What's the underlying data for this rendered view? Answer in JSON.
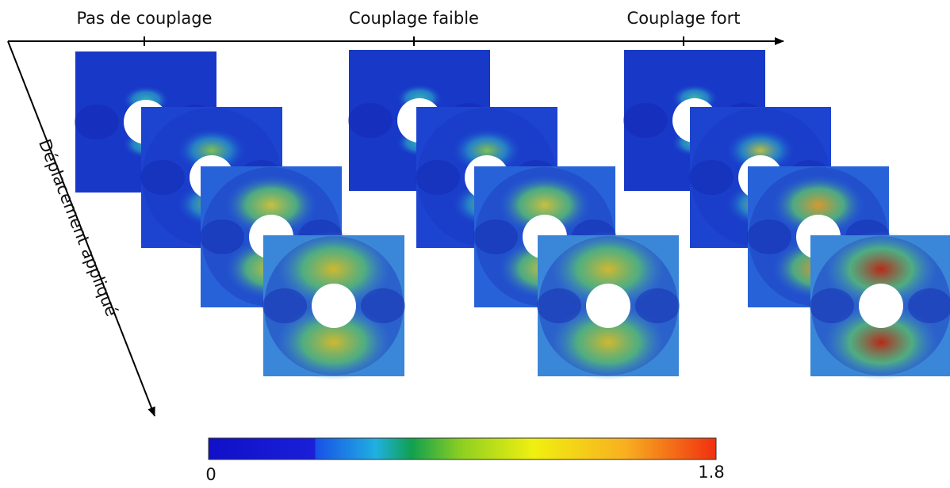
{
  "column_labels": [
    "Pas de couplage",
    "Couplage faible",
    "Couplage fort"
  ],
  "row_axis_label": "Déplacement appliqué",
  "colorbar": {
    "min": 0,
    "max": 1.8
  }
}
